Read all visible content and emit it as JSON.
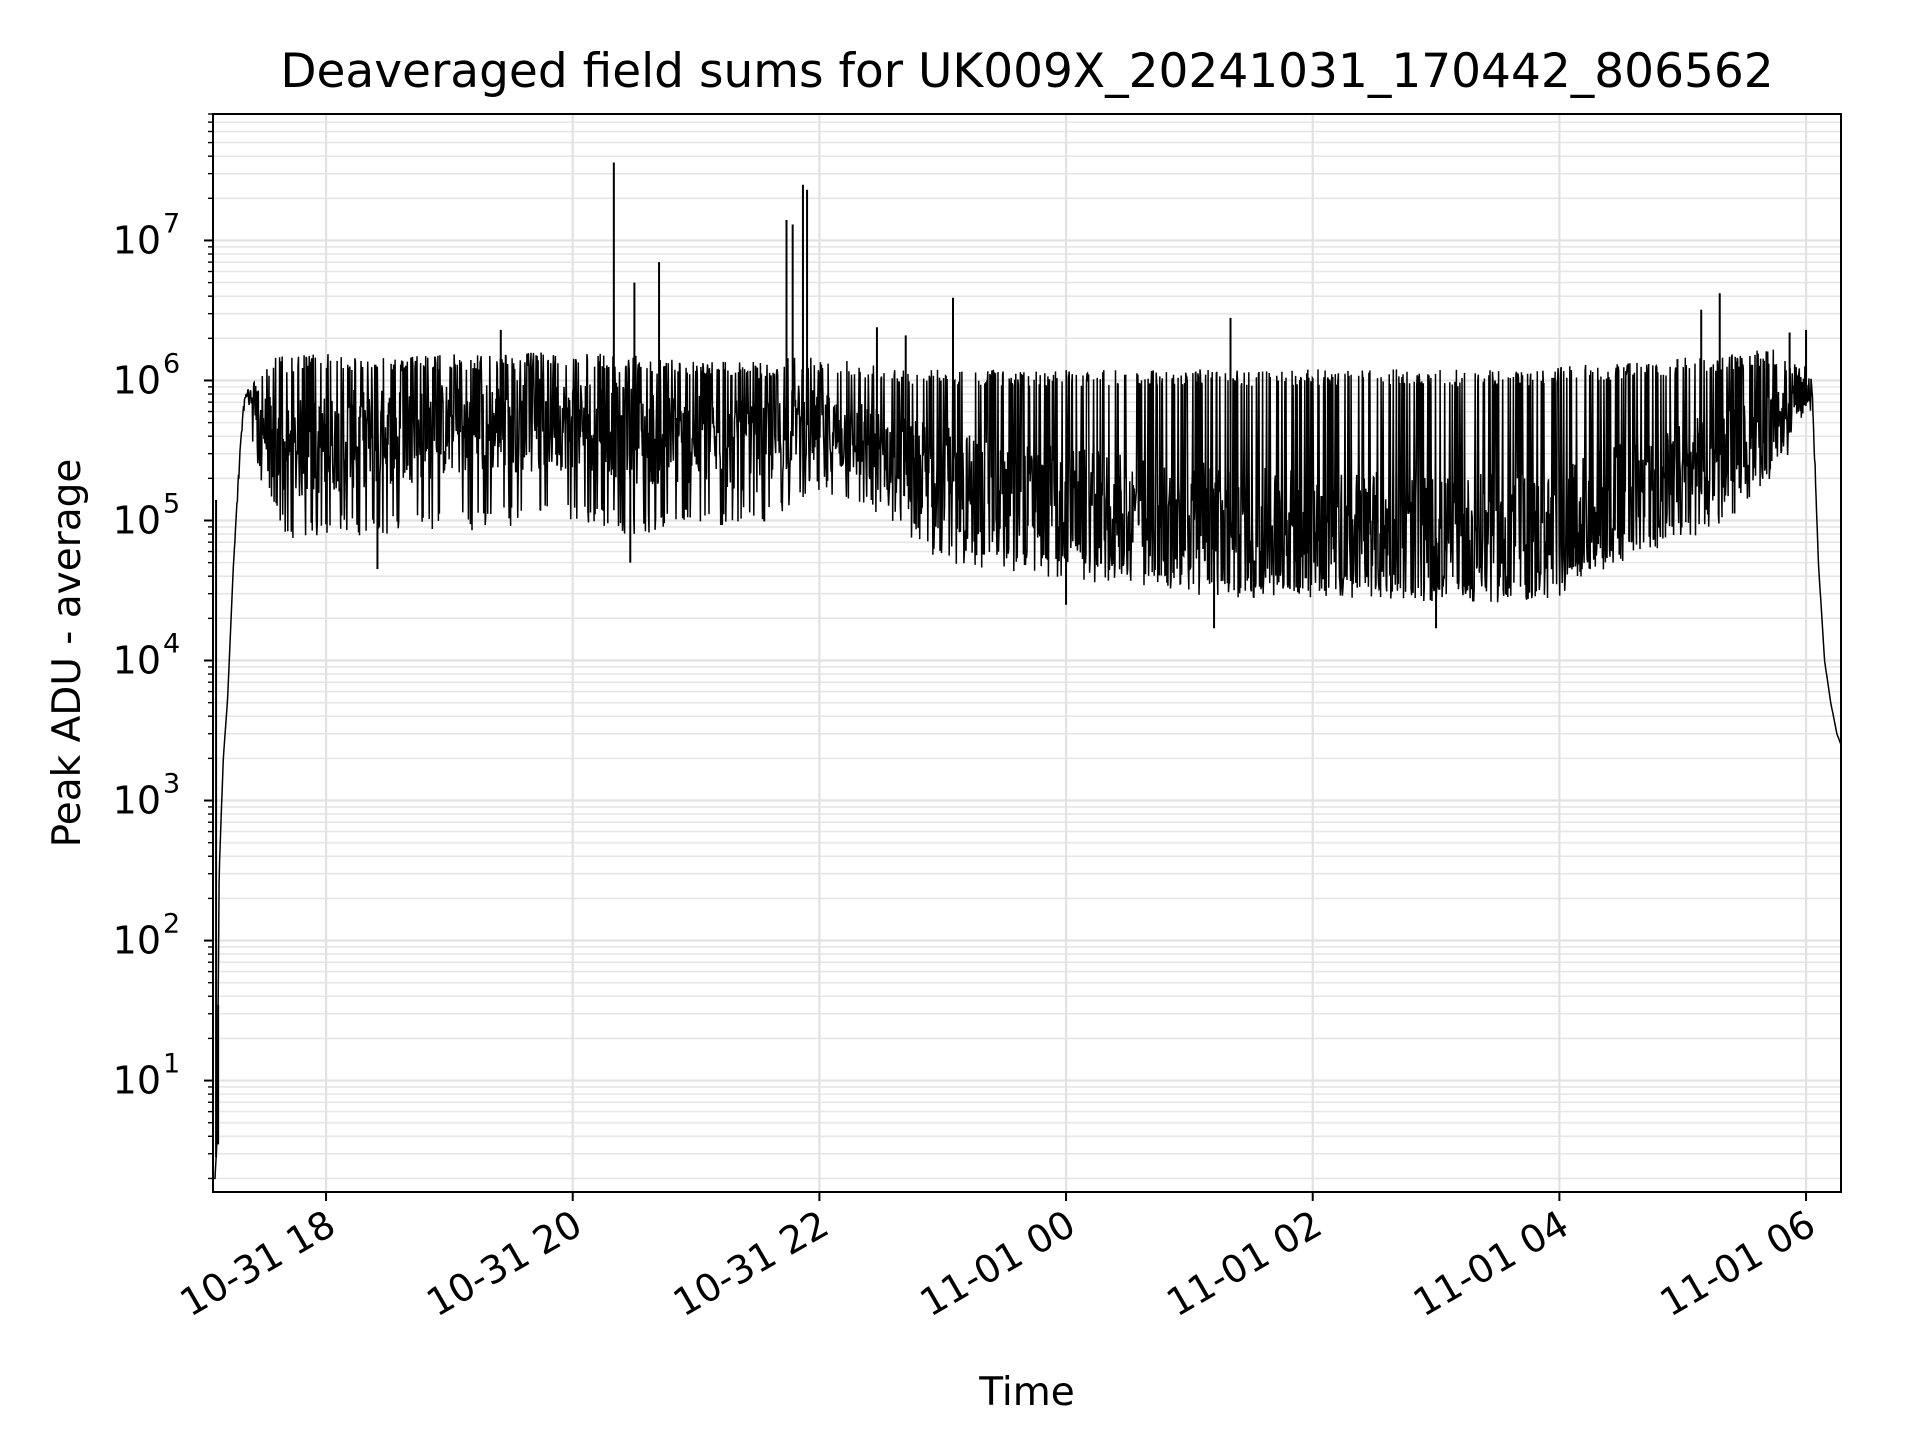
{
  "chart_data": {
    "type": "line",
    "title": "Deaveraged field sums for UK009X_20241031_170442_806562",
    "xlabel": "Time",
    "ylabel": "Peak ADU - average",
    "x_scale": "time",
    "y_scale": "log",
    "xlim": [
      "2024-10-31T17:05:00",
      "2024-11-01T06:17:00"
    ],
    "ylim": [
      1.6,
      80000000
    ],
    "grid": true,
    "grid_minor": true,
    "line_color": "#000000",
    "x_ticks": [
      {
        "t": "2024-10-31T18:00:00",
        "label": "10-31 18"
      },
      {
        "t": "2024-10-31T20:00:00",
        "label": "10-31 20"
      },
      {
        "t": "2024-10-31T22:00:00",
        "label": "10-31 22"
      },
      {
        "t": "2024-11-01T00:00:00",
        "label": "11-01 00"
      },
      {
        "t": "2024-11-01T02:00:00",
        "label": "11-01 02"
      },
      {
        "t": "2024-11-01T04:00:00",
        "label": "11-01 04"
      },
      {
        "t": "2024-11-01T06:00:00",
        "label": "11-01 06"
      }
    ],
    "y_ticks": [
      {
        "v": 10,
        "base": "10",
        "exp": "1"
      },
      {
        "v": 100,
        "base": "10",
        "exp": "2"
      },
      {
        "v": 1000,
        "base": "10",
        "exp": "3"
      },
      {
        "v": 10000,
        "base": "10",
        "exp": "4"
      },
      {
        "v": 100000,
        "base": "10",
        "exp": "5"
      },
      {
        "v": 1000000,
        "base": "10",
        "exp": "6"
      },
      {
        "v": 10000000,
        "base": "10",
        "exp": "7"
      }
    ],
    "series": [
      {
        "x": [
          "2024-10-31T17:05:00",
          "2024-10-31T17:06:00",
          "2024-10-31T17:07:00",
          "2024-10-31T17:08:00",
          "2024-10-31T17:10:00",
          "2024-10-31T17:12:00",
          "2024-10-31T17:15:00",
          "2024-10-31T17:18:00",
          "2024-10-31T17:20:00",
          "2024-10-31T17:22:00",
          "2024-10-31T17:25:00",
          "2024-10-31T17:30:00",
          "2024-10-31T17:35:00",
          "2024-10-31T17:40:00",
          "2024-10-31T17:48:00",
          "2024-10-31T18:00:00",
          "2024-10-31T18:15:00",
          "2024-10-31T18:30:00",
          "2024-10-31T18:45:00",
          "2024-10-31T19:00:00",
          "2024-10-31T19:15:00",
          "2024-10-31T19:30:00",
          "2024-10-31T19:45:00",
          "2024-10-31T20:00:00",
          "2024-10-31T20:15:00",
          "2024-10-31T20:25:00",
          "2024-10-31T20:35:00",
          "2024-10-31T20:45:00",
          "2024-10-31T21:00:00",
          "2024-10-31T21:15:00",
          "2024-10-31T21:30:00",
          "2024-10-31T21:40:00",
          "2024-10-31T21:50:00",
          "2024-10-31T22:00:00",
          "2024-10-31T22:15:00",
          "2024-10-31T22:30:00",
          "2024-10-31T22:45:00",
          "2024-10-31T23:00:00",
          "2024-10-31T23:15:00",
          "2024-10-31T23:30:00",
          "2024-10-31T23:45:00",
          "2024-11-01T00:00:00",
          "2024-11-01T00:15:00",
          "2024-11-01T00:30:00",
          "2024-11-01T00:45:00",
          "2024-11-01T01:00:00",
          "2024-11-01T01:15:00",
          "2024-11-01T01:30:00",
          "2024-11-01T01:45:00",
          "2024-11-01T02:00:00",
          "2024-11-01T02:15:00",
          "2024-11-01T02:30:00",
          "2024-11-01T02:45:00",
          "2024-11-01T03:00:00",
          "2024-11-01T03:15:00",
          "2024-11-01T03:30:00",
          "2024-11-01T03:45:00",
          "2024-11-01T04:00:00",
          "2024-11-01T04:15:00",
          "2024-11-01T04:30:00",
          "2024-11-01T04:45:00",
          "2024-11-01T05:00:00",
          "2024-11-01T05:15:00",
          "2024-11-01T05:30:00",
          "2024-11-01T05:45:00",
          "2024-11-01T06:00:00",
          "2024-11-01T06:03:00",
          "2024-11-01T06:06:00",
          "2024-11-01T06:09:00",
          "2024-11-01T06:12:00",
          "2024-11-01T06:15:00",
          "2024-11-01T06:17:00"
        ],
        "median": [
          2,
          2,
          4,
          300,
          2000,
          5000,
          50000,
          300000,
          700000,
          850000,
          650000,
          450000,
          350000,
          300000,
          320000,
          350000,
          380000,
          400000,
          420000,
          450000,
          450000,
          480000,
          480000,
          500000,
          480000,
          420000,
          400000,
          380000,
          370000,
          350000,
          330000,
          400000,
          500000,
          450000,
          380000,
          320000,
          250000,
          200000,
          170000,
          150000,
          140000,
          130000,
          120000,
          110000,
          100000,
          100000,
          90000,
          85000,
          85000,
          85000,
          85000,
          80000,
          80000,
          75000,
          75000,
          75000,
          75000,
          80000,
          120000,
          150000,
          180000,
          220000,
          280000,
          350000,
          450000,
          800000,
          900000,
          50000,
          10000,
          5000,
          3000,
          2500
        ],
        "low": [
          2,
          2,
          4,
          300,
          2000,
          5000,
          50000,
          250000,
          600000,
          700000,
          300000,
          150000,
          100000,
          80000,
          70000,
          80000,
          75000,
          80000,
          80000,
          85000,
          85000,
          90000,
          90000,
          95000,
          90000,
          80000,
          80000,
          85000,
          90000,
          90000,
          90000,
          110000,
          140000,
          150000,
          130000,
          100000,
          70000,
          50000,
          45000,
          42000,
          40000,
          38000,
          36000,
          34000,
          32000,
          30000,
          28000,
          28000,
          28000,
          28000,
          28000,
          27000,
          27000,
          26000,
          26000,
          26000,
          26000,
          28000,
          40000,
          50000,
          60000,
          70000,
          90000,
          120000,
          200000,
          500000,
          600000,
          50000,
          10000,
          5000,
          3000,
          2500
        ],
        "high": [
          2,
          2,
          4,
          300,
          2000,
          5000,
          50000,
          300000,
          700000,
          900000,
          1000000,
          1300000,
          1500000,
          1500000,
          1550000,
          1550000,
          1500000,
          1500000,
          1500000,
          1550000,
          1550000,
          1550000,
          1600000,
          1550000,
          1550000,
          1500000,
          1500000,
          1450000,
          1400000,
          1400000,
          1350000,
          1400000,
          1500000,
          1500000,
          1400000,
          1300000,
          1250000,
          1200000,
          1200000,
          1200000,
          1200000,
          1200000,
          1200000,
          1200000,
          1200000,
          1200000,
          1200000,
          1200000,
          1200000,
          1200000,
          1200000,
          1200000,
          1200000,
          1200000,
          1200000,
          1200000,
          1200000,
          1250000,
          1300000,
          1350000,
          1400000,
          1450000,
          1500000,
          1600000,
          1700000,
          1300000,
          1000000,
          50000,
          10000,
          5000,
          3000,
          2500
        ]
      }
    ],
    "spikes": [
      {
        "t": "2024-10-31T17:06:30",
        "v": 140000
      },
      {
        "t": "2024-10-31T17:07:30",
        "v": 3.5
      },
      {
        "t": "2024-10-31T19:25:00",
        "v": 2300000
      },
      {
        "t": "2024-10-31T20:20:00",
        "v": 36000000
      },
      {
        "t": "2024-10-31T20:30:00",
        "v": 5000000
      },
      {
        "t": "2024-10-31T20:42:00",
        "v": 7000000
      },
      {
        "t": "2024-10-31T21:44:00",
        "v": 14000000
      },
      {
        "t": "2024-10-31T21:47:00",
        "v": 13000000
      },
      {
        "t": "2024-10-31T21:52:00",
        "v": 25000000
      },
      {
        "t": "2024-10-31T21:54:00",
        "v": 23000000
      },
      {
        "t": "2024-10-31T22:28:00",
        "v": 2400000
      },
      {
        "t": "2024-10-31T22:42:00",
        "v": 2100000
      },
      {
        "t": "2024-10-31T23:05:00",
        "v": 3900000
      },
      {
        "t": "2024-11-01T01:20:00",
        "v": 2800000
      },
      {
        "t": "2024-11-01T05:09:00",
        "v": 3200000
      },
      {
        "t": "2024-11-01T05:18:00",
        "v": 4200000
      },
      {
        "t": "2024-11-01T05:52:00",
        "v": 2200000
      },
      {
        "t": "2024-11-01T06:00:00",
        "v": 2300000
      },
      {
        "t": "2024-10-31T20:28:00",
        "v": 50000
      },
      {
        "t": "2024-11-01T01:12:00",
        "v": 17000
      },
      {
        "t": "2024-11-01T03:00:00",
        "v": 17000
      },
      {
        "t": "2024-10-31T18:25:00",
        "v": 45000
      },
      {
        "t": "2024-11-01T00:00:00",
        "v": 25000
      }
    ]
  }
}
